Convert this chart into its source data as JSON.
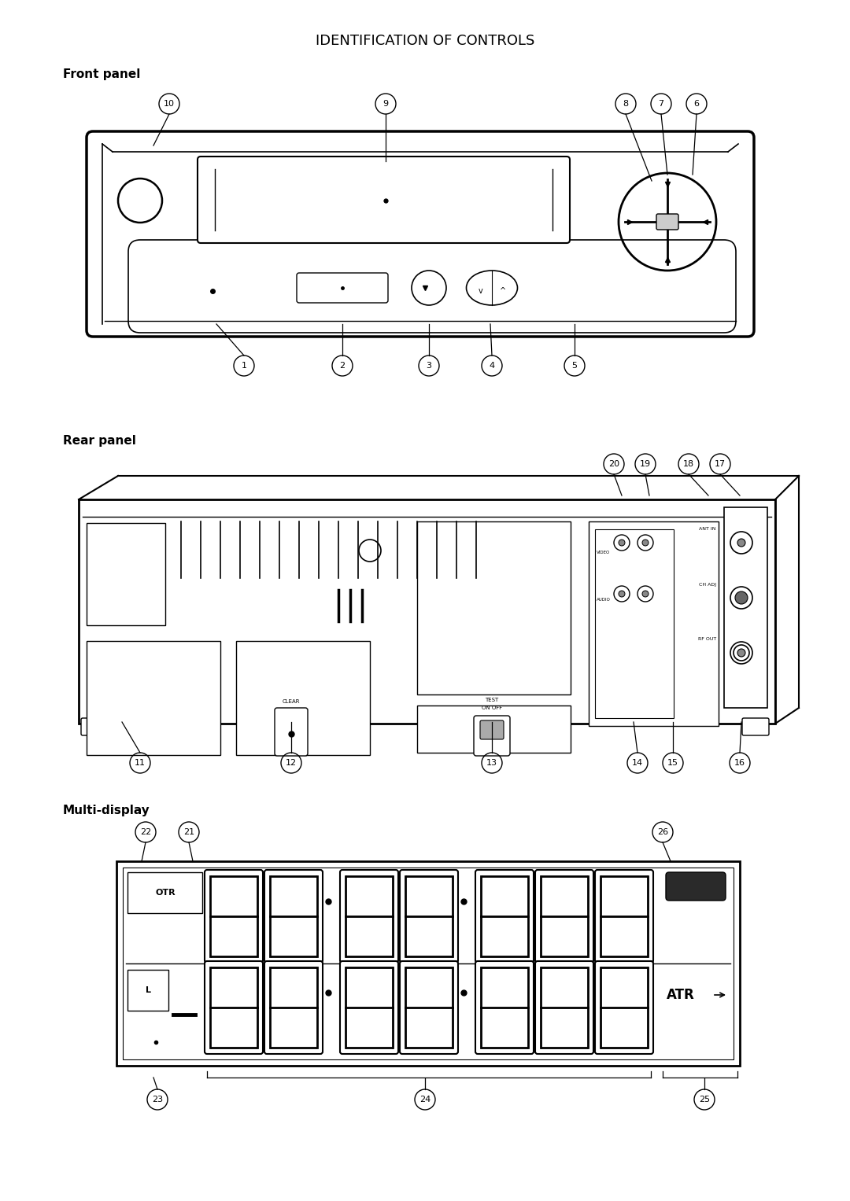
{
  "title": "IDENTIFICATION OF CONTROLS",
  "section1": "Front panel",
  "section2": "Rear panel",
  "section3": "Multi-display",
  "bg_color": "#ffffff",
  "lc": "#000000",
  "title_fontsize": 13,
  "section_fontsize": 11,
  "fig_w": 10.8,
  "fig_h": 15.27
}
